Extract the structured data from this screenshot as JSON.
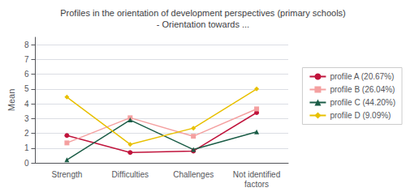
{
  "chart_data": {
    "type": "line",
    "title": "Profiles in the orientation of development perspectives (primary schools)\n- Orientation towards ...",
    "categories": [
      "Strength",
      "Difficulties",
      "Challenges",
      "Not identified\nfactors"
    ],
    "ylabel": "Mean",
    "ylim": [
      0,
      8.5
    ],
    "yticks": [
      0,
      1,
      2,
      3,
      4,
      5,
      6,
      7,
      8
    ],
    "grid": true,
    "legend": "right",
    "series": [
      {
        "name": "profile A (20.67%)",
        "color": "#c0143c",
        "marker": "circle",
        "line_style": "solid",
        "values": [
          1.85,
          0.7,
          0.8,
          3.4
        ]
      },
      {
        "name": "profile B (26.04%)",
        "color": "#f4a0a0",
        "marker": "square",
        "line_style": "solid",
        "values": [
          1.35,
          3.05,
          1.8,
          3.65
        ]
      },
      {
        "name": "profile C (44.20%)",
        "color": "#1a5c46",
        "marker": "triangle",
        "line_style": "solid",
        "values": [
          0.2,
          2.9,
          0.9,
          2.1
        ]
      },
      {
        "name": "profile D (9.09%)",
        "color": "#e8c000",
        "marker": "diamond",
        "line_style": "solid",
        "values": [
          4.45,
          1.25,
          2.35,
          5.0
        ]
      }
    ]
  }
}
